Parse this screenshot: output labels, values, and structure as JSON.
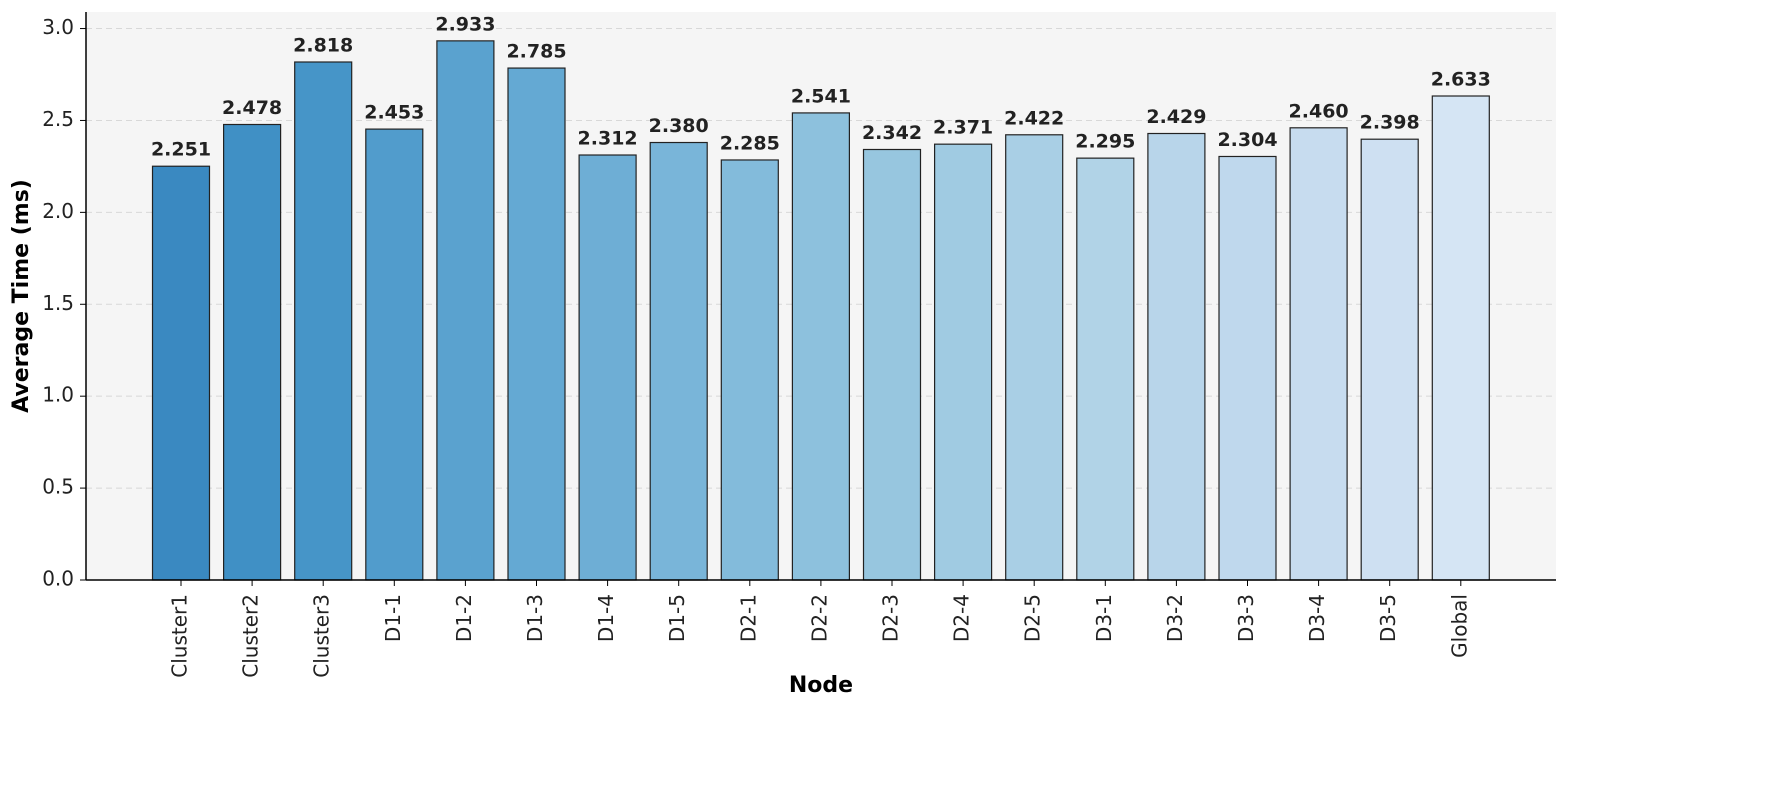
{
  "chart_data": {
    "type": "bar",
    "x_label": "Node",
    "y_label": "Average Time (ms)",
    "categories": [
      "Cluster1",
      "Cluster2",
      "Cluster3",
      "D1-1",
      "D1-2",
      "D1-3",
      "D1-4",
      "D1-5",
      "D2-1",
      "D2-2",
      "D2-3",
      "D2-4",
      "D2-5",
      "D3-1",
      "D3-2",
      "D3-3",
      "D3-4",
      "D3-5",
      "Global"
    ],
    "values": [
      2.251,
      2.478,
      2.818,
      2.453,
      2.933,
      2.785,
      2.312,
      2.38,
      2.285,
      2.541,
      2.342,
      2.371,
      2.422,
      2.295,
      2.429,
      2.304,
      2.46,
      2.398,
      2.633
    ],
    "value_labels": [
      "2.251",
      "2.478",
      "2.818",
      "2.453",
      "2.933",
      "2.785",
      "2.312",
      "2.380",
      "2.285",
      "2.541",
      "2.342",
      "2.371",
      "2.422",
      "2.295",
      "2.429",
      "2.304",
      "2.460",
      "2.398",
      "2.633"
    ],
    "colors": [
      "#3a89c1",
      "#4090c5",
      "#4695c8",
      "#519ccc",
      "#5aa2cf",
      "#64a9d3",
      "#6eaed5",
      "#79b5d9",
      "#83bbdb",
      "#8dc1dd",
      "#97c6df",
      "#a0cbe2",
      "#a9cfe5",
      "#b1d3e7",
      "#b8d5ea",
      "#bfd8ed",
      "#c7dcef",
      "#cee0f2",
      "#d5e5f4"
    ],
    "ylim": [
      0,
      3.09
    ],
    "yticks": [
      {
        "value": 0,
        "label": "0.0"
      },
      {
        "value": 0.5,
        "label": "0.5"
      },
      {
        "value": 1,
        "label": "1.0"
      },
      {
        "value": 1.5,
        "label": "1.5"
      },
      {
        "value": 2,
        "label": "2.0"
      },
      {
        "value": 2.5,
        "label": "2.5"
      },
      {
        "value": 3,
        "label": "3.0"
      }
    ],
    "grid": true
  }
}
